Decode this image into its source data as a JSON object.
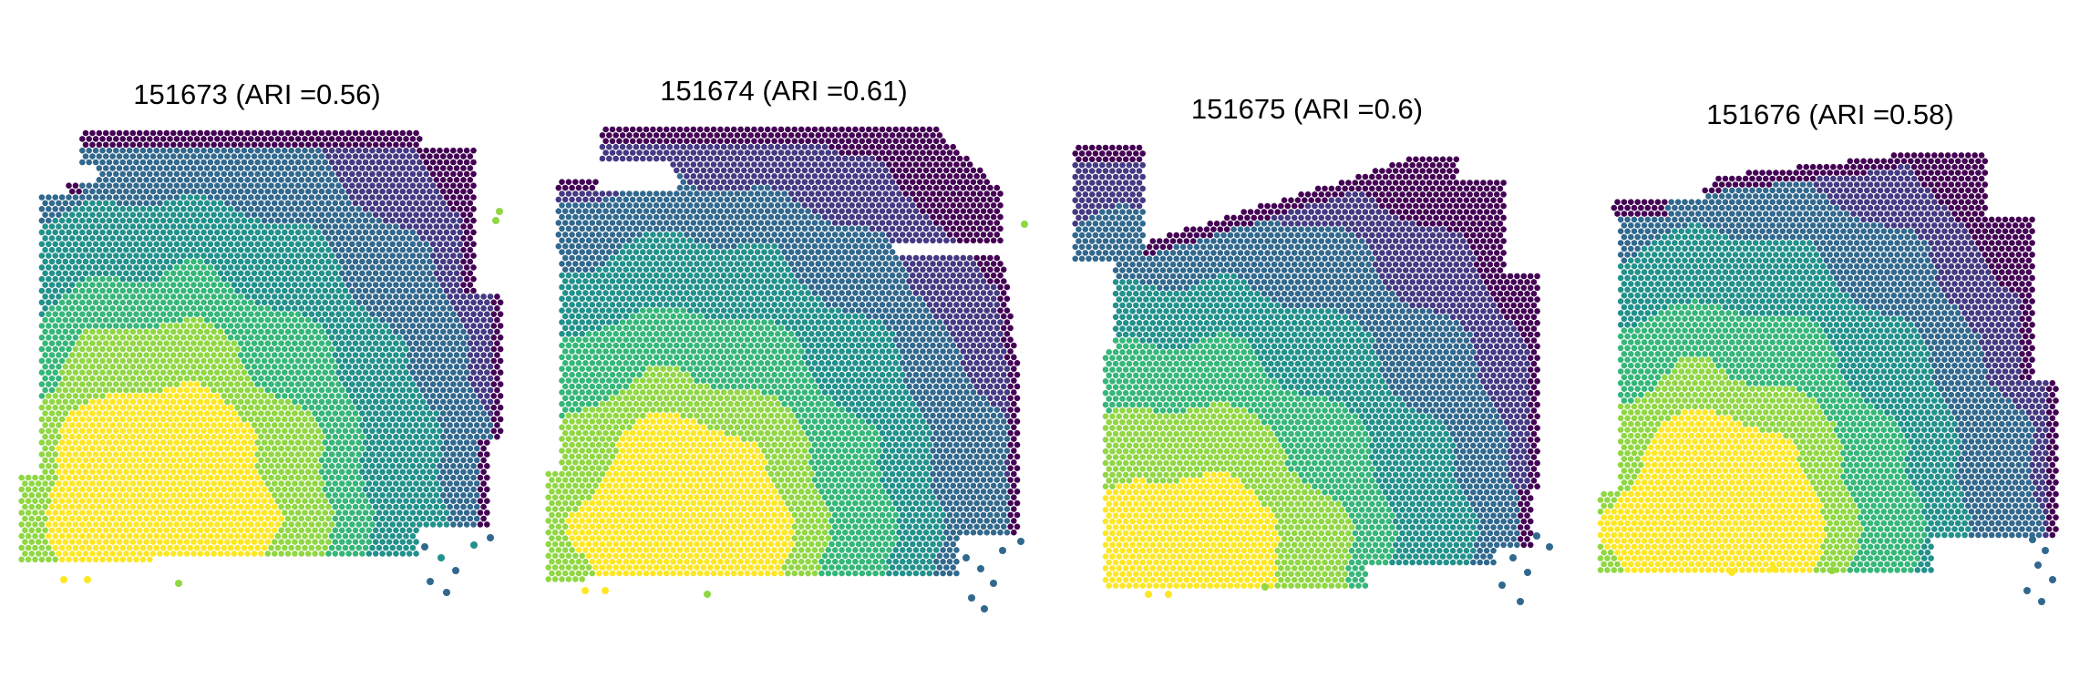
{
  "chart_data": [
    {
      "type": "scatter",
      "title": "151673 (ARI =0.56)",
      "sample": "151673",
      "ari": 0.56,
      "legend": "none",
      "axes": "hidden",
      "layers": 7
    },
    {
      "type": "scatter",
      "title": "151674 (ARI =0.61)",
      "sample": "151674",
      "ari": 0.61,
      "legend": "none",
      "axes": "hidden",
      "layers": 7
    },
    {
      "type": "scatter",
      "title": "151675 (ARI =0.6)",
      "sample": "151675",
      "ari": 0.6,
      "legend": "none",
      "axes": "hidden",
      "layers": 7
    },
    {
      "type": "scatter",
      "title": "151676 (ARI =0.58)",
      "sample": "151676",
      "ari": 0.58,
      "legend": "none",
      "axes": "hidden",
      "layers": 7
    }
  ],
  "colors": {
    "palette": [
      "#440154",
      "#443983",
      "#31688e",
      "#21918c",
      "#35b779",
      "#90d743",
      "#fde725"
    ],
    "background": "#ffffff"
  }
}
